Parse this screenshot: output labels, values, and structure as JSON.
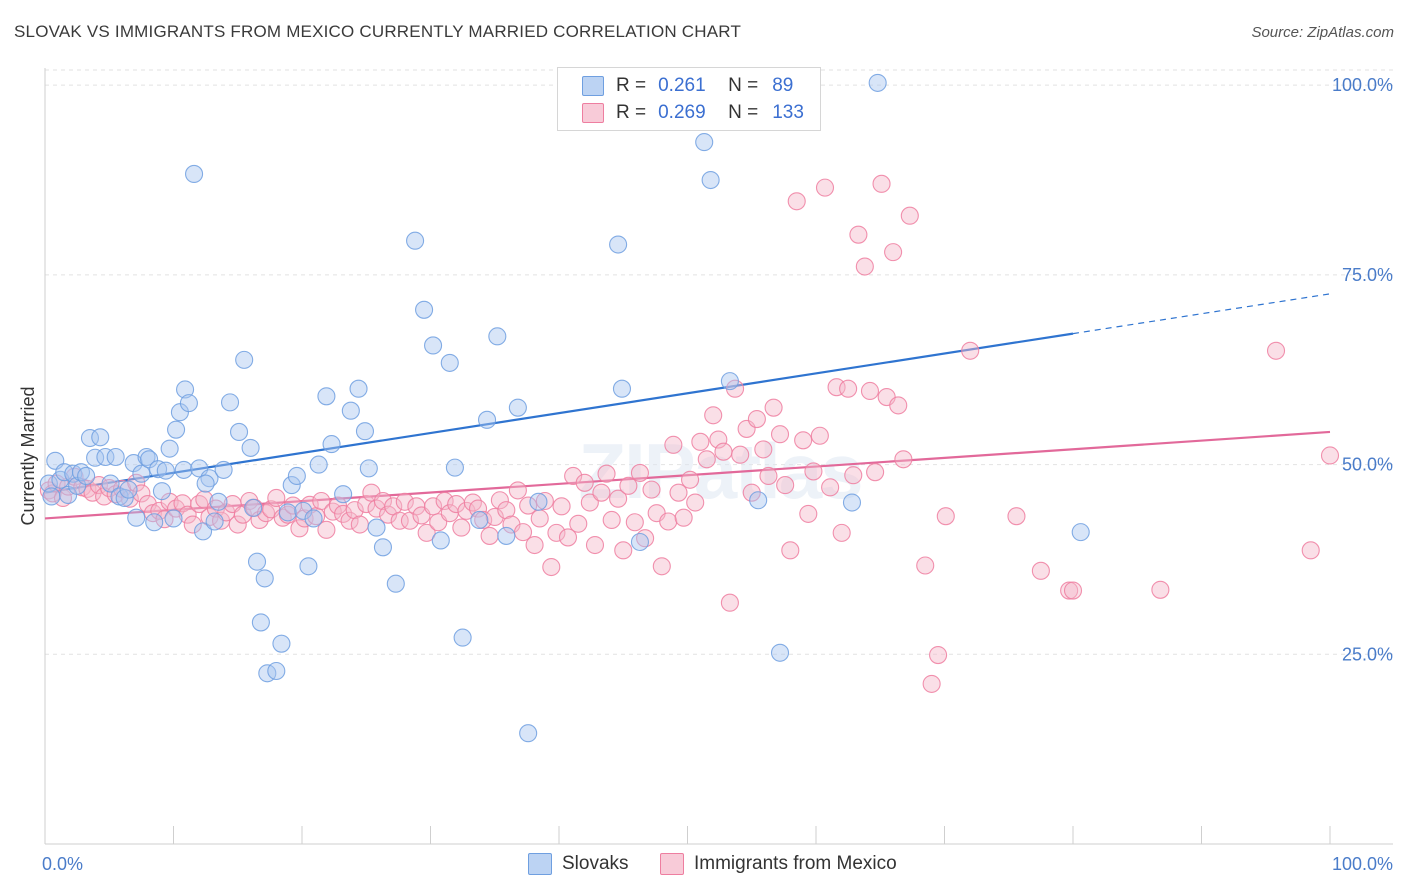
{
  "header": {
    "title": "SLOVAK VS IMMIGRANTS FROM MEXICO CURRENTLY MARRIED CORRELATION CHART",
    "source": "Source: ZipAtlas.com"
  },
  "watermark": "ZIPatlas",
  "legend": {
    "rows": [
      {
        "r_label": "R =",
        "r_value": "0.261",
        "n_label": "N =",
        "n_value": "89",
        "color": "#a9c6ef"
      },
      {
        "r_label": "R =",
        "r_value": "0.269",
        "n_label": "N =",
        "n_value": "133",
        "color": "#f5b7c9"
      }
    ]
  },
  "bottom_legend": {
    "items": [
      {
        "label": "Slovaks",
        "color": "#a9c6ef"
      },
      {
        "label": "Immigrants from Mexico",
        "color": "#f5b7c9"
      }
    ]
  },
  "chart_data": {
    "type": "scatter",
    "title": "SLOVAK VS IMMIGRANTS FROM MEXICO CURRENTLY MARRIED CORRELATION CHART",
    "xlabel": "",
    "ylabel": "Currently Married",
    "xlim": [
      0,
      100
    ],
    "ylim": [
      0,
      102
    ],
    "x_tick_labels": {
      "left": "0.0%",
      "right": "100.0%"
    },
    "y_ticks": [
      {
        "value": 25,
        "label": "25.0%"
      },
      {
        "value": 50,
        "label": "50.0%"
      },
      {
        "value": 75,
        "label": "75.0%"
      },
      {
        "value": 100,
        "label": "100.0%"
      }
    ],
    "grid": "horizontal dashed",
    "legend_placement": "top-center",
    "series": [
      {
        "name": "Slovaks",
        "color": "#6f9fe0",
        "fill": "#a9c6ef",
        "trend": {
          "x0": 0,
          "y0": 46.3,
          "x1": 100,
          "y1": 72.5,
          "solid_until_x": 80
        },
        "points": [
          [
            0.3,
            47.5
          ],
          [
            0.5,
            45.8
          ],
          [
            0.8,
            50.5
          ],
          [
            1.2,
            48.0
          ],
          [
            1.5,
            49.0
          ],
          [
            1.8,
            46.0
          ],
          [
            2.2,
            48.8
          ],
          [
            2.5,
            47.2
          ],
          [
            2.8,
            49.0
          ],
          [
            3.2,
            48.5
          ],
          [
            3.5,
            53.5
          ],
          [
            3.9,
            50.9
          ],
          [
            4.3,
            53.6
          ],
          [
            4.7,
            51.0
          ],
          [
            5.1,
            47.5
          ],
          [
            5.5,
            51.0
          ],
          [
            5.8,
            45.8
          ],
          [
            6.2,
            45.6
          ],
          [
            6.5,
            46.7
          ],
          [
            6.9,
            50.2
          ],
          [
            7.1,
            43.0
          ],
          [
            7.5,
            48.8
          ],
          [
            7.9,
            51.0
          ],
          [
            8.1,
            50.7
          ],
          [
            8.5,
            42.4
          ],
          [
            8.8,
            49.4
          ],
          [
            9.1,
            46.5
          ],
          [
            9.4,
            49.2
          ],
          [
            9.7,
            52.1
          ],
          [
            10.0,
            42.9
          ],
          [
            10.2,
            54.6
          ],
          [
            10.5,
            56.9
          ],
          [
            10.8,
            49.3
          ],
          [
            10.9,
            59.9
          ],
          [
            11.2,
            58.1
          ],
          [
            11.6,
            88.3
          ],
          [
            12.0,
            49.5
          ],
          [
            12.3,
            41.2
          ],
          [
            12.8,
            48.2
          ],
          [
            13.2,
            42.5
          ],
          [
            12.5,
            47.5
          ],
          [
            13.5,
            45.1
          ],
          [
            13.9,
            49.3
          ],
          [
            14.4,
            58.2
          ],
          [
            15.1,
            54.3
          ],
          [
            15.5,
            63.8
          ],
          [
            16.0,
            52.2
          ],
          [
            16.2,
            44.3
          ],
          [
            16.5,
            37.2
          ],
          [
            16.8,
            29.2
          ],
          [
            17.1,
            35.0
          ],
          [
            17.3,
            22.5
          ],
          [
            18.0,
            22.8
          ],
          [
            18.4,
            26.4
          ],
          [
            18.9,
            43.7
          ],
          [
            19.2,
            47.3
          ],
          [
            19.6,
            48.5
          ],
          [
            20.1,
            43.9
          ],
          [
            20.5,
            36.6
          ],
          [
            20.9,
            42.9
          ],
          [
            21.3,
            50.0
          ],
          [
            21.9,
            59.0
          ],
          [
            22.3,
            52.7
          ],
          [
            23.2,
            46.1
          ],
          [
            23.8,
            57.1
          ],
          [
            24.4,
            60.0
          ],
          [
            24.9,
            54.4
          ],
          [
            25.2,
            49.5
          ],
          [
            25.8,
            41.7
          ],
          [
            26.3,
            39.1
          ],
          [
            27.3,
            34.3
          ],
          [
            28.8,
            79.5
          ],
          [
            29.5,
            70.4
          ],
          [
            30.2,
            65.7
          ],
          [
            30.8,
            40.0
          ],
          [
            31.5,
            63.4
          ],
          [
            31.9,
            49.6
          ],
          [
            32.5,
            27.2
          ],
          [
            33.8,
            42.7
          ],
          [
            34.4,
            55.9
          ],
          [
            35.2,
            66.9
          ],
          [
            35.9,
            40.6
          ],
          [
            36.8,
            57.5
          ],
          [
            37.6,
            14.6
          ],
          [
            38.4,
            45.1
          ],
          [
            44.6,
            79.0
          ],
          [
            44.9,
            60.0
          ],
          [
            46.3,
            39.8
          ],
          [
            51.3,
            92.5
          ],
          [
            51.8,
            87.5
          ],
          [
            53.3,
            61.0
          ],
          [
            55.5,
            45.3
          ],
          [
            57.2,
            25.2
          ],
          [
            62.8,
            45.0
          ],
          [
            64.8,
            100.3
          ],
          [
            80.6,
            41.1
          ]
        ]
      },
      {
        "name": "Immigrants from Mexico",
        "color": "#ee7ea0",
        "fill": "#f5b7c9",
        "trend": {
          "x0": 0,
          "y0": 42.9,
          "x1": 100,
          "y1": 54.3
        },
        "points": [
          [
            0.3,
            46.6
          ],
          [
            0.6,
            46.2
          ],
          [
            0.9,
            47.5
          ],
          [
            1.4,
            45.6
          ],
          [
            1.8,
            47.1
          ],
          [
            2.3,
            48.4
          ],
          [
            2.9,
            47.0
          ],
          [
            3.3,
            46.8
          ],
          [
            3.7,
            46.3
          ],
          [
            4.2,
            47.3
          ],
          [
            4.6,
            45.8
          ],
          [
            5.0,
            46.9
          ],
          [
            5.5,
            46.1
          ],
          [
            6.0,
            46.8
          ],
          [
            6.6,
            45.5
          ],
          [
            7.1,
            47.6
          ],
          [
            7.5,
            46.2
          ],
          [
            8.0,
            44.8
          ],
          [
            8.4,
            43.6
          ],
          [
            8.9,
            43.9
          ],
          [
            9.3,
            42.8
          ],
          [
            9.7,
            45.1
          ],
          [
            10.2,
            44.2
          ],
          [
            10.7,
            44.9
          ],
          [
            11.1,
            43.4
          ],
          [
            11.5,
            42.1
          ],
          [
            12.0,
            44.8
          ],
          [
            12.4,
            45.4
          ],
          [
            12.8,
            43.1
          ],
          [
            13.3,
            44.2
          ],
          [
            13.7,
            42.6
          ],
          [
            14.1,
            43.7
          ],
          [
            14.6,
            44.8
          ],
          [
            15.0,
            42.1
          ],
          [
            15.4,
            43.4
          ],
          [
            15.9,
            45.2
          ],
          [
            16.3,
            44.3
          ],
          [
            16.7,
            42.7
          ],
          [
            17.2,
            43.6
          ],
          [
            17.6,
            44.1
          ],
          [
            18.0,
            45.6
          ],
          [
            18.5,
            43.0
          ],
          [
            18.9,
            43.4
          ],
          [
            19.3,
            44.6
          ],
          [
            19.8,
            41.6
          ],
          [
            20.2,
            42.9
          ],
          [
            20.6,
            44.7
          ],
          [
            21.1,
            43.2
          ],
          [
            21.5,
            45.2
          ],
          [
            21.9,
            41.4
          ],
          [
            22.4,
            43.8
          ],
          [
            22.8,
            44.6
          ],
          [
            23.2,
            43.5
          ],
          [
            23.7,
            42.6
          ],
          [
            24.1,
            44.0
          ],
          [
            24.5,
            42.1
          ],
          [
            25.0,
            44.8
          ],
          [
            25.4,
            46.3
          ],
          [
            25.8,
            44.2
          ],
          [
            26.3,
            45.2
          ],
          [
            26.7,
            43.4
          ],
          [
            27.1,
            44.5
          ],
          [
            27.6,
            42.6
          ],
          [
            28.0,
            45.1
          ],
          [
            28.4,
            42.6
          ],
          [
            28.9,
            44.5
          ],
          [
            29.3,
            43.3
          ],
          [
            29.7,
            41.0
          ],
          [
            30.2,
            44.5
          ],
          [
            30.6,
            42.4
          ],
          [
            31.1,
            45.2
          ],
          [
            31.5,
            43.6
          ],
          [
            32.0,
            44.8
          ],
          [
            32.4,
            41.7
          ],
          [
            32.8,
            43.9
          ],
          [
            33.3,
            45.0
          ],
          [
            33.7,
            44.2
          ],
          [
            34.1,
            42.7
          ],
          [
            34.6,
            40.6
          ],
          [
            35.0,
            43.1
          ],
          [
            35.4,
            45.3
          ],
          [
            35.9,
            44.0
          ],
          [
            36.3,
            42.1
          ],
          [
            36.8,
            46.6
          ],
          [
            37.2,
            41.1
          ],
          [
            37.6,
            44.6
          ],
          [
            38.1,
            39.4
          ],
          [
            38.5,
            42.9
          ],
          [
            38.9,
            45.2
          ],
          [
            39.4,
            36.5
          ],
          [
            39.8,
            41.0
          ],
          [
            40.2,
            44.5
          ],
          [
            40.7,
            40.4
          ],
          [
            41.1,
            48.5
          ],
          [
            41.5,
            42.2
          ],
          [
            42.0,
            47.6
          ],
          [
            42.4,
            45.0
          ],
          [
            42.8,
            39.4
          ],
          [
            43.3,
            46.3
          ],
          [
            43.7,
            48.8
          ],
          [
            44.1,
            42.7
          ],
          [
            44.6,
            45.5
          ],
          [
            45.0,
            38.7
          ],
          [
            45.4,
            47.2
          ],
          [
            45.9,
            42.4
          ],
          [
            46.3,
            48.9
          ],
          [
            46.7,
            40.3
          ],
          [
            47.2,
            46.7
          ],
          [
            47.6,
            43.6
          ],
          [
            48.0,
            36.6
          ],
          [
            48.5,
            42.5
          ],
          [
            48.9,
            52.6
          ],
          [
            49.3,
            46.3
          ],
          [
            49.7,
            43.0
          ],
          [
            50.2,
            48.0
          ],
          [
            50.6,
            45.0
          ],
          [
            51.0,
            53.0
          ],
          [
            51.5,
            50.7
          ],
          [
            52.0,
            56.5
          ],
          [
            52.4,
            53.3
          ],
          [
            52.8,
            51.7
          ],
          [
            53.3,
            31.8
          ],
          [
            53.7,
            60.0
          ],
          [
            54.1,
            51.3
          ],
          [
            54.6,
            54.7
          ],
          [
            55.0,
            46.3
          ],
          [
            55.4,
            56.0
          ],
          [
            55.9,
            52.0
          ],
          [
            56.3,
            48.5
          ],
          [
            56.7,
            57.5
          ],
          [
            57.2,
            54.0
          ],
          [
            57.6,
            47.3
          ],
          [
            58.0,
            38.7
          ],
          [
            58.5,
            84.7
          ],
          [
            59.0,
            53.2
          ],
          [
            59.4,
            43.5
          ],
          [
            59.8,
            49.1
          ],
          [
            60.3,
            53.8
          ],
          [
            60.7,
            86.5
          ],
          [
            61.1,
            47.0
          ],
          [
            61.6,
            60.2
          ],
          [
            62.0,
            41.0
          ],
          [
            62.5,
            60.0
          ],
          [
            62.9,
            48.6
          ],
          [
            63.3,
            80.3
          ],
          [
            63.8,
            76.1
          ],
          [
            64.2,
            59.7
          ],
          [
            64.6,
            49.0
          ],
          [
            65.1,
            87.0
          ],
          [
            65.5,
            58.9
          ],
          [
            66.0,
            78.0
          ],
          [
            66.4,
            57.8
          ],
          [
            66.8,
            50.7
          ],
          [
            67.3,
            82.8
          ],
          [
            68.5,
            36.7
          ],
          [
            69.0,
            21.1
          ],
          [
            69.5,
            24.9
          ],
          [
            70.1,
            43.2
          ],
          [
            72.0,
            65.0
          ],
          [
            75.6,
            43.2
          ],
          [
            77.5,
            36.0
          ],
          [
            79.7,
            33.4
          ],
          [
            80.0,
            33.4
          ],
          [
            86.8,
            33.5
          ],
          [
            95.8,
            65.0
          ],
          [
            98.5,
            38.7
          ],
          [
            100.0,
            51.2
          ]
        ]
      }
    ]
  }
}
